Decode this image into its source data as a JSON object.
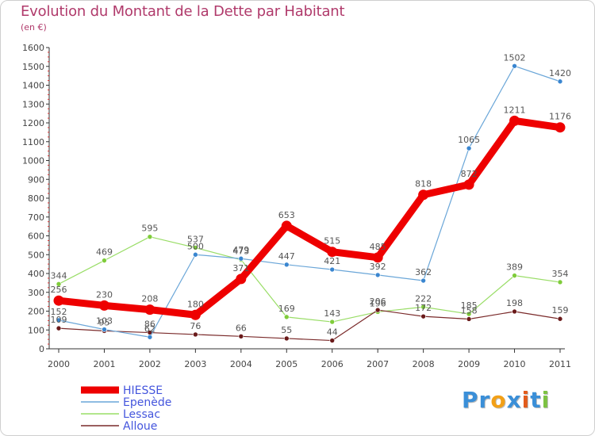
{
  "title": "Evolution du Montant de la Dette par Habitant",
  "subtitle": "(en €)",
  "logo": {
    "text": "Proxiti",
    "letters": [
      {
        "ch": "P",
        "color": "#3a8fd8"
      },
      {
        "ch": "r",
        "color": "#3a8fd8"
      },
      {
        "ch": "o",
        "color": "#f2a017"
      },
      {
        "ch": "x",
        "color": "#3a8fd8"
      },
      {
        "ch": "i",
        "color": "#e25b1c"
      },
      {
        "ch": "t",
        "color": "#3a8fd8"
      },
      {
        "ch": "i",
        "color": "#7cc242"
      }
    ]
  },
  "chart_data": {
    "type": "line",
    "categories": [
      "2000",
      "2001",
      "2002",
      "2003",
      "2004",
      "2005",
      "2006",
      "2007",
      "2008",
      "2009",
      "2010",
      "2011"
    ],
    "ylim": [
      0,
      1600
    ],
    "yticks": [
      0,
      100,
      200,
      300,
      400,
      500,
      600,
      700,
      800,
      900,
      1000,
      1100,
      1200,
      1300,
      1400,
      1500,
      1600
    ],
    "grid": false,
    "legend": "bottom-left",
    "series": [
      {
        "name": "Lessac",
        "color": "#99dd66",
        "marker": "#7fcc3a",
        "width": 1.2,
        "values": [
          344,
          469,
          595,
          537,
          473,
          169,
          143,
          196,
          222,
          185,
          389,
          354
        ]
      },
      {
        "name": "Alloue",
        "color": "#7a2a2a",
        "marker": "#6a1a1a",
        "width": 1.2,
        "values": [
          109,
          95,
          86,
          76,
          66,
          55,
          44,
          206,
          172,
          158,
          198,
          159
        ]
      },
      {
        "name": "Epenède",
        "color": "#6aa6d8",
        "marker": "#3a86d0",
        "width": 1.2,
        "values": [
          152,
          103,
          62,
          500,
          479,
          447,
          421,
          392,
          362,
          1065,
          1502,
          1420
        ]
      },
      {
        "name": "HIESSE",
        "color": "#ee0000",
        "marker": "#ee0000",
        "width": 9,
        "values": [
          256,
          230,
          208,
          180,
          371,
          653,
          515,
          485,
          818,
          872,
          1211,
          1176
        ]
      }
    ],
    "legend_order": [
      "HIESSE",
      "Epenède",
      "Lessac",
      "Alloue"
    ]
  }
}
